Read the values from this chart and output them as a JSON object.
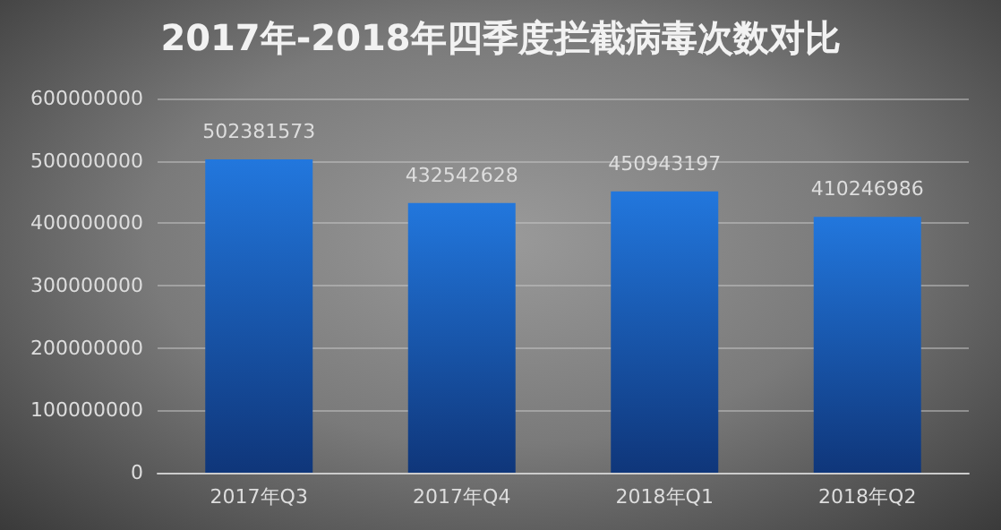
{
  "chart_data": {
    "type": "bar",
    "title": "2017年-2018年四季度拦截病毒次数对比",
    "categories": [
      "2017年Q3",
      "2017年Q4",
      "2018年Q1",
      "2018年Q2"
    ],
    "values": [
      502381573,
      432542628,
      450943197,
      410246986
    ],
    "color": "#2277dd",
    "ylim": [
      0,
      600000000
    ],
    "yticks": [
      0,
      100000000,
      200000000,
      300000000,
      400000000,
      500000000,
      600000000
    ],
    "grid": "y",
    "data_labels": true
  }
}
